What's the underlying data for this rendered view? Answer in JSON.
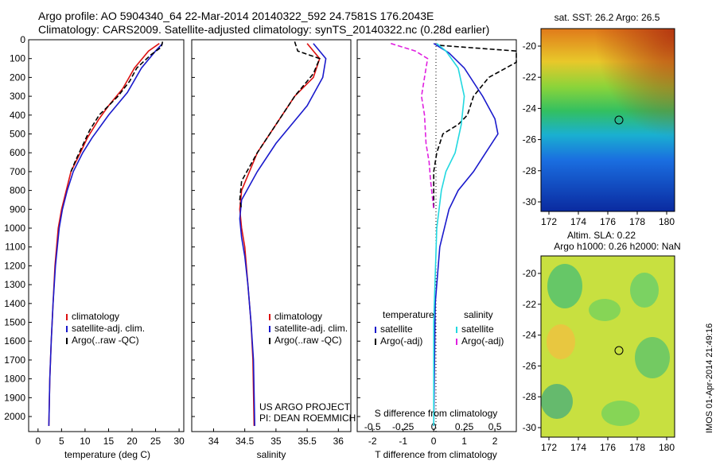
{
  "header": {
    "line1": "Argo profile: AO 5904340_64 22-Mar-2014 20140322_592 24.7581S 176.2043E",
    "line2": "Climatology: CARS2009. Satellite-adjusted climatology: synTS_20140322.nc (0.28d earlier)"
  },
  "colors": {
    "climatology": "#dd1111",
    "satellite": "#1a1acc",
    "argo": "#000000",
    "cyan": "#22d8e0",
    "magenta": "#e020e0"
  },
  "chart_data": [
    {
      "type": "line",
      "xlabel": "temperature (deg C)",
      "ylabel": "",
      "xlim": [
        -2,
        31
      ],
      "ylim": [
        2080,
        0
      ],
      "xticks": [
        "0",
        "5",
        "10",
        "15",
        "20",
        "25",
        "30"
      ],
      "yticks": [
        "0",
        "100",
        "200",
        "300",
        "400",
        "500",
        "600",
        "700",
        "800",
        "900",
        "1000",
        "1100",
        "1200",
        "1300",
        "1400",
        "1500",
        "1600",
        "1700",
        "1800",
        "1900",
        "2000"
      ],
      "legend": [
        "climatology",
        "satellite-adj. clim.",
        "Argo(..raw -QC)"
      ],
      "series": [
        {
          "name": "climatology",
          "color": "#dd1111",
          "points": [
            [
              25.8,
              20
            ],
            [
              23.5,
              60
            ],
            [
              20.5,
              150
            ],
            [
              18,
              260
            ],
            [
              15,
              350
            ],
            [
              13,
              420
            ],
            [
              10.5,
              520
            ],
            [
              9,
              600
            ],
            [
              7,
              700
            ],
            [
              6,
              800
            ],
            [
              5,
              900
            ],
            [
              4.3,
              1000
            ],
            [
              3.6,
              1200
            ],
            [
              3.2,
              1400
            ],
            [
              2.8,
              1600
            ],
            [
              2.5,
              1800
            ],
            [
              2.3,
              2050
            ]
          ]
        },
        {
          "name": "satellite-adj. clim.",
          "color": "#1a1acc",
          "points": [
            [
              26.5,
              20
            ],
            [
              25,
              60
            ],
            [
              22,
              150
            ],
            [
              19,
              280
            ],
            [
              15,
              400
            ],
            [
              11.5,
              520
            ],
            [
              9.5,
              600
            ],
            [
              7.5,
              700
            ],
            [
              6.2,
              800
            ],
            [
              5.2,
              900
            ],
            [
              4.5,
              1000
            ],
            [
              3.7,
              1200
            ],
            [
              3.2,
              1400
            ],
            [
              2.8,
              1600
            ],
            [
              2.5,
              1800
            ],
            [
              2.3,
              2050
            ]
          ]
        },
        {
          "name": "Argo(..raw -QC)",
          "color": "#000000",
          "dashed": true,
          "points": [
            [
              26.5,
              10
            ],
            [
              26.2,
              40
            ],
            [
              24,
              80
            ],
            [
              21,
              150
            ],
            [
              19.5,
              220
            ],
            [
              17,
              300
            ],
            [
              15,
              350
            ],
            [
              13,
              400
            ],
            [
              11,
              480
            ],
            [
              9.5,
              560
            ],
            [
              8,
              640
            ],
            [
              7,
              700
            ]
          ]
        }
      ]
    },
    {
      "type": "line",
      "xlabel": "salinity",
      "ylabel": "",
      "xlim": [
        33.65,
        36.2
      ],
      "ylim": [
        2080,
        0
      ],
      "xticks": [
        "34",
        "34.5",
        "35",
        "35.5",
        "36"
      ],
      "yticks": [],
      "legend": [
        "climatology",
        "satellite-adj. clim.",
        "Argo(..raw -QC)"
      ],
      "annotation": [
        "US ARGO PROJECT",
        "PI: DEAN ROEMMICH"
      ],
      "series": [
        {
          "name": "climatology",
          "color": "#dd1111",
          "points": [
            [
              35.5,
              20
            ],
            [
              35.7,
              100
            ],
            [
              35.6,
              200
            ],
            [
              35.3,
              300
            ],
            [
              35.0,
              450
            ],
            [
              34.7,
              600
            ],
            [
              34.45,
              800
            ],
            [
              34.42,
              900
            ],
            [
              34.45,
              1000
            ],
            [
              34.5,
              1100
            ],
            [
              34.55,
              1300
            ],
            [
              34.6,
              1500
            ],
            [
              34.63,
              1700
            ],
            [
              34.65,
              2050
            ]
          ]
        },
        {
          "name": "satellite-adj. clim.",
          "color": "#1a1acc",
          "points": [
            [
              35.6,
              20
            ],
            [
              35.8,
              100
            ],
            [
              35.75,
              200
            ],
            [
              35.5,
              350
            ],
            [
              35.0,
              550
            ],
            [
              34.7,
              700
            ],
            [
              34.45,
              850
            ],
            [
              34.42,
              950
            ],
            [
              34.45,
              1050
            ],
            [
              34.5,
              1150
            ],
            [
              34.55,
              1300
            ],
            [
              34.6,
              1500
            ],
            [
              34.64,
              1700
            ],
            [
              34.66,
              2050
            ]
          ]
        },
        {
          "name": "Argo(..raw -QC)",
          "color": "#000000",
          "dashed": true,
          "points": [
            [
              35.3,
              10
            ],
            [
              35.35,
              60
            ],
            [
              35.7,
              100
            ],
            [
              35.6,
              180
            ],
            [
              35.3,
              300
            ],
            [
              35.0,
              450
            ],
            [
              34.7,
              600
            ],
            [
              34.45,
              750
            ],
            [
              34.42,
              850
            ],
            [
              34.45,
              900
            ]
          ]
        }
      ]
    },
    {
      "type": "line",
      "xlabel": "T difference from climatology",
      "xlabel_top": "S difference from climatology",
      "ylabel": "",
      "xlim": [
        -2.5,
        2.7
      ],
      "ylim": [
        2080,
        0
      ],
      "xticks": [
        "-2",
        "-1",
        "0",
        "1",
        "2"
      ],
      "xticks_top": [
        "-0.5",
        "-0.25",
        "0",
        "0.25",
        "0.5"
      ],
      "yticks": [],
      "legend_titles": [
        "temperature",
        "salinity"
      ],
      "legend": [
        "satellite",
        "Argo(-adj)",
        "satellite",
        "Argo(-adj)"
      ],
      "series": [
        {
          "name": "satellite",
          "color": "#1a1acc",
          "points": [
            [
              0,
              20
            ],
            [
              0.5,
              70
            ],
            [
              1.0,
              150
            ],
            [
              1.6,
              300
            ],
            [
              2.0,
              420
            ],
            [
              2.1,
              500
            ],
            [
              1.7,
              600
            ],
            [
              1.3,
              700
            ],
            [
              0.8,
              800
            ],
            [
              0.5,
              900
            ],
            [
              0.2,
              1100
            ],
            [
              0.05,
              1400
            ],
            [
              0,
              2050
            ]
          ]
        },
        {
          "name": "Argo(-adj)",
          "color": "#000000",
          "dashed": true,
          "points": [
            [
              0.2,
              30
            ],
            [
              2.8,
              60
            ],
            [
              3.0,
              120
            ],
            [
              1.8,
              200
            ],
            [
              1.3,
              300
            ],
            [
              1.1,
              400
            ],
            [
              0.8,
              450
            ],
            [
              0.3,
              500
            ],
            [
              0.1,
              600
            ],
            [
              0.0,
              700
            ],
            [
              0.0,
              900
            ]
          ]
        },
        {
          "name": "satellite",
          "color": "#22d8e0",
          "points": [
            [
              0.1,
              20
            ],
            [
              0.4,
              60
            ],
            [
              0.8,
              150
            ],
            [
              1.0,
              300
            ],
            [
              0.9,
              450
            ],
            [
              0.7,
              600
            ],
            [
              0.4,
              700
            ],
            [
              0.25,
              800
            ],
            [
              0.1,
              1000
            ],
            [
              0.0,
              1500
            ],
            [
              0,
              2050
            ]
          ]
        },
        {
          "name": "Argo(-adj)",
          "color": "#e020e0",
          "dashed": true,
          "points": [
            [
              -1.4,
              20
            ],
            [
              -0.6,
              60
            ],
            [
              -0.2,
              100
            ],
            [
              -0.3,
              200
            ],
            [
              -0.4,
              300
            ],
            [
              -0.3,
              400
            ],
            [
              -0.25,
              550
            ],
            [
              -0.15,
              650
            ],
            [
              -0.1,
              750
            ],
            [
              0.0,
              900
            ]
          ]
        }
      ]
    }
  ],
  "maps": [
    {
      "title": "sat. SST: 26.2 Argo: 26.5",
      "xticks": [
        "172",
        "174",
        "176",
        "178",
        "180"
      ],
      "yticks": [
        "-20",
        "-22",
        "-24",
        "-26",
        "-28",
        "-30"
      ]
    },
    {
      "title": "Altim. SLA: 0.22",
      "subtitle": "Argo h1000: 0.26 h2000: NaN",
      "xticks": [
        "172",
        "174",
        "176",
        "178",
        "180"
      ],
      "yticks": [
        "-20",
        "-22",
        "-24",
        "-26",
        "-28",
        "-30"
      ]
    }
  ],
  "footer": {
    "imos": "IMOS 01-Apr-2014 21:49:16"
  }
}
